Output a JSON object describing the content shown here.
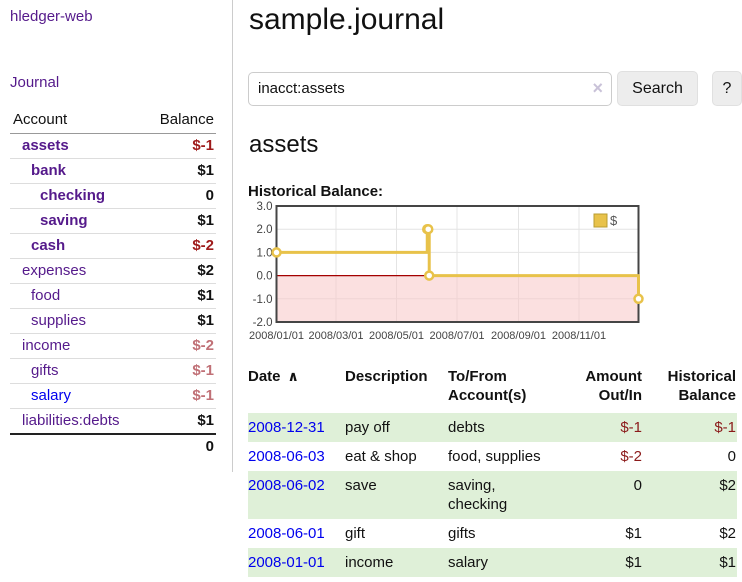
{
  "sidebar": {
    "app_title": "hledger-web",
    "journal_link": "Journal",
    "accounts_table": {
      "headers": [
        "Account",
        "Balance"
      ],
      "rows": [
        {
          "name": "assets",
          "indent": 1,
          "bold": true,
          "balance": "$-1",
          "balance_style": "neg-strong"
        },
        {
          "name": "bank",
          "indent": 2,
          "bold": true,
          "balance": "$1",
          "balance_style": ""
        },
        {
          "name": "checking",
          "indent": 3,
          "bold": true,
          "balance": "0",
          "balance_style": ""
        },
        {
          "name": "saving",
          "indent": 3,
          "bold": true,
          "balance": "$1",
          "balance_style": ""
        },
        {
          "name": "cash",
          "indent": 2,
          "bold": true,
          "balance": "$-2",
          "balance_style": "neg-strong"
        },
        {
          "name": "expenses",
          "indent": 1,
          "bold": false,
          "balance": "$2",
          "balance_style": ""
        },
        {
          "name": "food",
          "indent": 2,
          "bold": false,
          "balance": "$1",
          "balance_style": ""
        },
        {
          "name": "supplies",
          "indent": 2,
          "bold": false,
          "balance": "$1",
          "balance_style": ""
        },
        {
          "name": "income",
          "indent": 1,
          "bold": false,
          "balance": "$-2",
          "balance_style": "neg-light"
        },
        {
          "name": "gifts",
          "indent": 2,
          "bold": false,
          "balance": "$-1",
          "balance_style": "neg-light"
        },
        {
          "name": "salary",
          "indent": 2,
          "bold": false,
          "balance": "$-1",
          "balance_style": "neg-light",
          "link_color": "blue"
        },
        {
          "name": "liabilities:debts",
          "indent": 1,
          "bold": false,
          "balance": "$1",
          "balance_style": ""
        }
      ],
      "total": "0"
    }
  },
  "main": {
    "title": "sample.journal",
    "search": {
      "value": "inacct:assets",
      "clear_icon": "×",
      "button_label": "Search",
      "help_label": "?"
    },
    "account_heading": "assets",
    "chart_label": "Historical Balance:",
    "transactions": {
      "headers": [
        "Date",
        "Description",
        "To/From Account(s)",
        "Amount Out/In",
        "Historical Balance"
      ],
      "sort_icon": "∧",
      "rows": [
        {
          "date": "2008-12-31",
          "description": "pay off",
          "accounts": "debts",
          "amount": "$-1",
          "amount_neg": true,
          "balance": "$-1",
          "balance_neg": true
        },
        {
          "date": "2008-06-03",
          "description": "eat & shop",
          "accounts": "food, supplies",
          "amount": "$-2",
          "amount_neg": true,
          "balance": "0",
          "balance_neg": false
        },
        {
          "date": "2008-06-02",
          "description": "save",
          "accounts": "saving, checking",
          "amount": "0",
          "amount_neg": false,
          "balance": "$2",
          "balance_neg": false
        },
        {
          "date": "2008-06-01",
          "description": "gift",
          "accounts": "gifts",
          "amount": "$1",
          "amount_neg": false,
          "balance": "$2",
          "balance_neg": false
        },
        {
          "date": "2008-01-01",
          "description": "income",
          "accounts": "salary",
          "amount": "$1",
          "amount_neg": false,
          "balance": "$1",
          "balance_neg": false
        }
      ]
    }
  },
  "chart_data": {
    "type": "line",
    "title": "Historical Balance:",
    "step": true,
    "series": [
      {
        "name": "$",
        "color": "#e8c24a",
        "points": [
          [
            "2008-01-01",
            1
          ],
          [
            "2008-06-01",
            2
          ],
          [
            "2008-06-02",
            2
          ],
          [
            "2008-06-03",
            0
          ],
          [
            "2008-12-31",
            -1
          ]
        ]
      }
    ],
    "x_range": [
      "2008-01-01",
      "2008-12-31"
    ],
    "ylim": [
      -2,
      3
    ],
    "y_ticks": [
      "3.0",
      "2.0",
      "1.0",
      "0.0",
      "-1.0",
      "-2.0"
    ],
    "x_tick_labels": [
      "2008/01/01",
      "2008/03/01",
      "2008/05/01",
      "2008/07/01",
      "2008/09/01",
      "2008/11/01"
    ],
    "grid": true,
    "legend_position": "top-right",
    "negative_region_color": "#f7c6c6",
    "zero_line_color": "#a40000",
    "border_color": "#454545"
  },
  "colors": {
    "link_purple": "#551a8b",
    "link_blue": "#0000ee",
    "negative_strong": "#9e1a1a",
    "negative_light": "#c07076",
    "row_stripe_green": "#dff0d8",
    "chart_gold": "#e8c24a"
  }
}
